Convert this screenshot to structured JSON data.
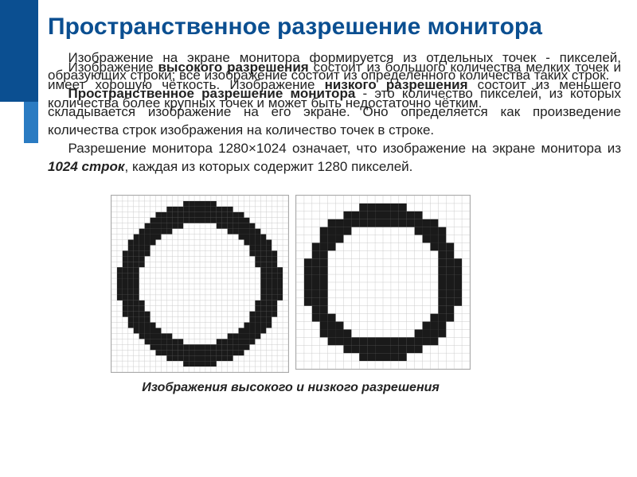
{
  "title": "Пространственное разрешение монитора",
  "layer1": {
    "p1_a": "Изображение ",
    "p1_b": "высокого разрешения",
    "p1_c": " состоит из большого количества мелких точек и имеет хорошую чёткость. Изображение ",
    "p1_d": "низкого разрешения",
    "p1_e": " состоит из меньшего количества более крупных точек и может быть недостаточно чётким."
  },
  "layer2": {
    "p1": "Изображение на экране монитора формируется из отдельных точек - пикселей, образующих строки; всё изображение состоит из определённого количества таких строк.",
    "p2_a": "Пространственное разрешение монитора",
    "p2_b": " - это количество пикселей, из которых складывается изображение на его экране. Оно определяется как произведение количества строк изображения на количество точек в строке.",
    "p3_a": "Разрешение монитора 1280×1024 означает, что изображение на экране монитора из ",
    "p3_b": "1024 строк",
    "p3_c": ", каждая из которых содержит 1280 пикселей."
  },
  "caption": "Изображения высокого и низкого разрешения",
  "colors": {
    "sidebar_dark": "#0b4f91",
    "sidebar_light": "#2a7bc2",
    "title": "#0b4f91",
    "text": "#222222"
  },
  "pixel_images": {
    "high_res": {
      "grid": 32,
      "cell": 7
    },
    "low_res": {
      "grid": 22,
      "cell": 10
    }
  }
}
